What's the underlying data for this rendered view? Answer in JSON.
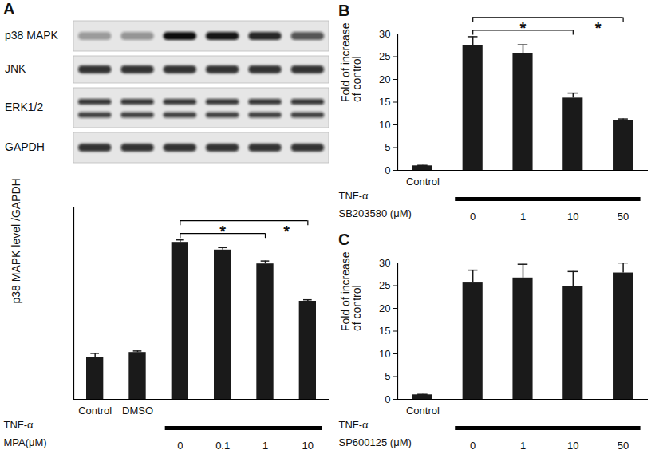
{
  "chart_data": [
    {
      "type": "bar",
      "panel": "A",
      "blot_rows": [
        "p38 MAPK",
        "JNK",
        "ERK1/2",
        "GAPDH"
      ],
      "y_label": "p38 MAPK level /GAPDH",
      "categories": [
        "Control",
        "DMSO",
        "0",
        "0.1",
        "1",
        "10"
      ],
      "values": [
        0.88,
        0.98,
        3.28,
        3.12,
        2.83,
        2.05
      ],
      "errors": [
        0.08,
        0.03,
        0.05,
        0.05,
        0.06,
        0.03
      ],
      "treatment": {
        "label": "TNF-α",
        "from": "0",
        "to": "10"
      },
      "dose_label": "MPA(μM)",
      "significance": [
        {
          "from": "0",
          "to": "1",
          "label": "*"
        },
        {
          "from": "0",
          "to": "10",
          "label": "*"
        }
      ],
      "color": "#1a1a1a",
      "ylim": [
        0,
        4
      ],
      "tick_labels": "x"
    },
    {
      "type": "bar",
      "panel": "B",
      "y_label": "Fold of increase\nof control",
      "categories": [
        "Control",
        "0",
        "1",
        "10",
        "50"
      ],
      "values": [
        1,
        27.5,
        25.7,
        15.9,
        10.9
      ],
      "errors": [
        0.1,
        1.9,
        1.9,
        1.1,
        0.4
      ],
      "treatment": {
        "label": "TNF-α",
        "from": "0",
        "to": "50"
      },
      "dose_label": "SB203580 (μM)",
      "significance": [
        {
          "from": "0",
          "to": "10",
          "label": "*"
        },
        {
          "from": "0",
          "to": "50",
          "label": "*"
        }
      ],
      "color": "#1a1a1a",
      "ylim": [
        0,
        30
      ],
      "yticks": [
        0,
        5,
        10,
        15,
        20,
        25,
        30
      ]
    },
    {
      "type": "bar",
      "panel": "C",
      "y_label": "Fold of increase\nof control",
      "categories": [
        "Control",
        "0",
        "1",
        "10",
        "50"
      ],
      "values": [
        1,
        25.6,
        26.7,
        24.9,
        27.8
      ],
      "errors": [
        0.1,
        2.8,
        3.0,
        3.2,
        2.2
      ],
      "treatment": {
        "label": "TNF-α",
        "from": "0",
        "to": "50"
      },
      "dose_label": "SP600125 (μM)",
      "significance": [],
      "color": "#1a1a1a",
      "ylim": [
        0,
        30
      ],
      "yticks": [
        0,
        5,
        10,
        15,
        20,
        25,
        30
      ]
    }
  ]
}
